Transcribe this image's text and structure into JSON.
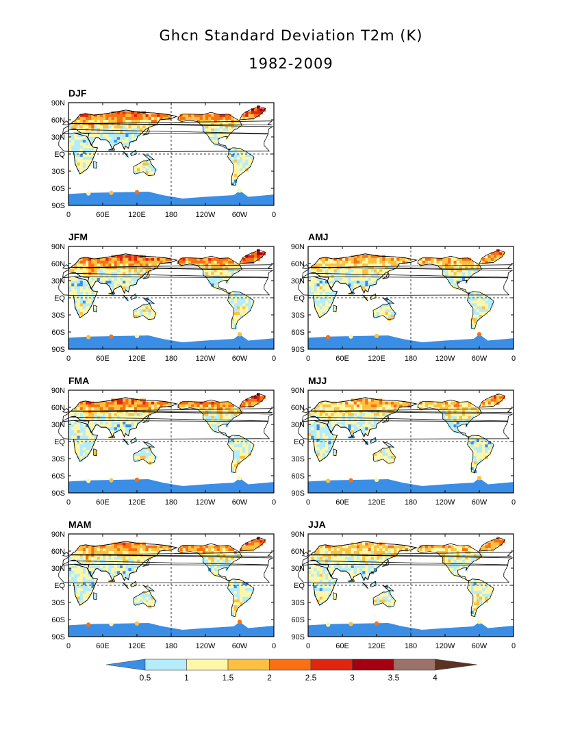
{
  "figure": {
    "title": "Ghcn Standard Deviation T2m (K)",
    "subtitle": "1982-2009"
  },
  "axes": {
    "lat_ticks": [
      "90N",
      "60N",
      "30N",
      "EQ",
      "30S",
      "60S",
      "90S"
    ],
    "lon_ticks": [
      "0",
      "60E",
      "120E",
      "180",
      "120W",
      "60W",
      "0"
    ]
  },
  "panels": [
    {
      "id": "DJF",
      "label": "DJF",
      "intensity": 1.0
    },
    {
      "id": "JFM",
      "label": "JFM",
      "intensity": 1.0
    },
    {
      "id": "AMJ",
      "label": "AMJ",
      "intensity": 0.45
    },
    {
      "id": "FMA",
      "label": "FMA",
      "intensity": 0.85
    },
    {
      "id": "MJJ",
      "label": "MJJ",
      "intensity": 0.35
    },
    {
      "id": "MAM",
      "label": "MAM",
      "intensity": 0.7
    },
    {
      "id": "JJA",
      "label": "JJA",
      "intensity": 0.3
    }
  ],
  "colorbar": {
    "levels": [
      "0.5",
      "1",
      "1.5",
      "2",
      "2.5",
      "3",
      "3.5",
      "4"
    ],
    "colors": [
      "#3b8ee6",
      "#b4ecfb",
      "#fff7a8",
      "#fdc040",
      "#fb7010",
      "#e12610",
      "#a50010",
      "#9b7268",
      "#5c3225"
    ]
  },
  "colors": {
    "ocean": "#ffffff",
    "antarctica": "#3b8ee6",
    "coast": "#000000"
  }
}
